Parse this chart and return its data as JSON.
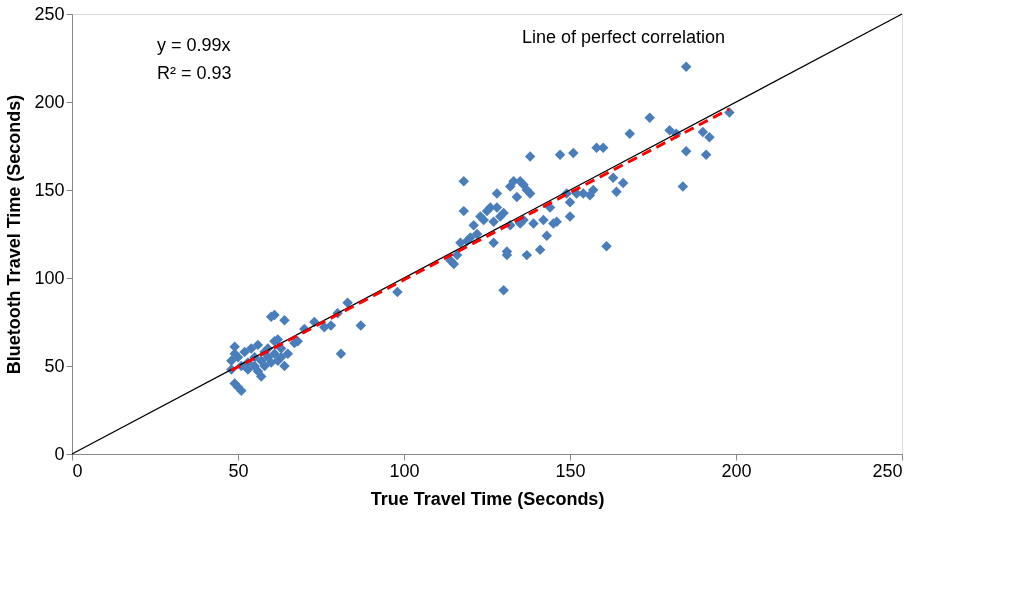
{
  "chart_data": {
    "type": "scatter",
    "xlabel": "True Travel Time (Seconds)",
    "ylabel": "Bluetooth Travel Time (Seconds)",
    "xlim": [
      0,
      250
    ],
    "ylim": [
      0,
      250
    ],
    "xticks": [
      0,
      50,
      100,
      150,
      200,
      250
    ],
    "yticks": [
      0,
      50,
      100,
      150,
      200,
      250
    ],
    "grid": false,
    "annotations": [
      "y = 0.99x",
      "R² = 0.93",
      "Line of perfect correlation"
    ],
    "series": [
      {
        "marker": "diamond",
        "color": "#4a7ebb",
        "x": [
          48,
          48,
          49,
          49,
          49,
          50,
          51,
          50,
          51,
          52,
          53,
          53,
          54,
          55,
          55,
          56,
          56,
          57,
          57,
          58,
          58,
          59,
          59,
          60,
          60,
          61,
          61,
          61,
          62,
          62,
          63,
          63,
          64,
          64,
          65,
          67,
          68,
          70,
          73,
          76,
          78,
          80,
          81,
          83,
          87,
          98,
          114,
          115,
          116,
          117,
          118,
          118,
          119,
          120,
          121,
          122,
          123,
          124,
          125,
          126,
          127,
          127,
          128,
          128,
          129,
          130,
          130,
          131,
          131,
          132,
          132,
          133,
          134,
          135,
          135,
          136,
          136,
          137,
          137,
          138,
          138,
          139,
          141,
          142,
          143,
          144,
          145,
          146,
          147,
          149,
          150,
          150,
          151,
          152,
          154,
          156,
          157,
          158,
          160,
          161,
          163,
          164,
          166,
          168,
          174,
          180,
          182,
          184,
          185,
          185,
          190,
          191,
          192,
          198
        ],
        "values": [
          48,
          53,
          57,
          61,
          40,
          38,
          36,
          55,
          50,
          58,
          52,
          48,
          60,
          55,
          50,
          62,
          47,
          44,
          53,
          58,
          50,
          55,
          60,
          78,
          52,
          64,
          79,
          57,
          65,
          53,
          60,
          55,
          76,
          50,
          57,
          63,
          64,
          71,
          75,
          72,
          73,
          80,
          57,
          86,
          73,
          92,
          110,
          108,
          113,
          120,
          155,
          138,
          121,
          123,
          130,
          125,
          135,
          133,
          138,
          140,
          120,
          132,
          140,
          148,
          135,
          137,
          93,
          113,
          115,
          130,
          152,
          155,
          146,
          131,
          155,
          153,
          133,
          150,
          113,
          169,
          148,
          131,
          116,
          133,
          124,
          140,
          131,
          132,
          170,
          148,
          135,
          143,
          171,
          148,
          148,
          147,
          150,
          174,
          174,
          118,
          157,
          149,
          154,
          182,
          191,
          184,
          182,
          152,
          172,
          220,
          183,
          170,
          180,
          194
        ]
      },
      {
        "type": "line",
        "color": "#000000",
        "line_style": "solid",
        "x": [
          0,
          250
        ],
        "values": [
          0,
          250
        ]
      },
      {
        "type": "line",
        "color": "#ff0000",
        "line_style": "dashed",
        "x": [
          48,
          198
        ],
        "values": [
          47.5,
          196
        ]
      }
    ]
  }
}
